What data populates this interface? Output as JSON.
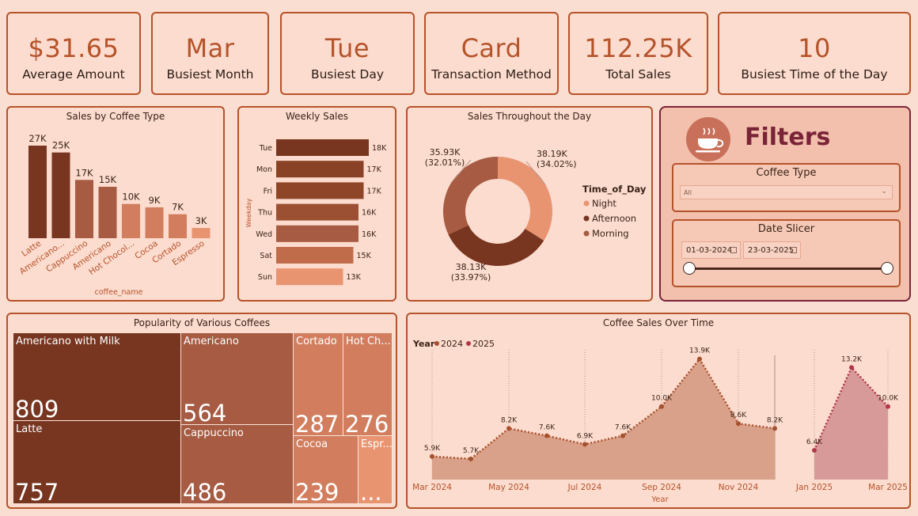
{
  "kpis": [
    {
      "value": "$31.65",
      "label": "Average Amount"
    },
    {
      "value": "Mar",
      "label": "Busiest Month"
    },
    {
      "value": "Tue",
      "label": "Busiest Day"
    },
    {
      "value": "Card",
      "label": "Transaction Method"
    },
    {
      "value": "112.25K",
      "label": "Total Sales"
    },
    {
      "value": "10",
      "label": "Busiest Time of the Day"
    }
  ],
  "coffee_type_chart": {
    "title": "Sales by Coffee Type",
    "xlabel": "coffee_name",
    "categories": [
      "Latte",
      "Americano...",
      "Cappuccino",
      "Americano",
      "Hot Chocol...",
      "Cocoa",
      "Cortado",
      "Espresso"
    ],
    "values": [
      27,
      25,
      17,
      15,
      10,
      9,
      7,
      3
    ],
    "labels": [
      "27K",
      "25K",
      "17K",
      "15K",
      "10K",
      "9K",
      "7K",
      "3K"
    ],
    "colors": [
      "#783620",
      "#783620",
      "#a65b42",
      "#a65b42",
      "#d27e5e",
      "#d27e5e",
      "#d27e5e",
      "#e99471"
    ]
  },
  "weekly_chart": {
    "title": "Weekly Sales",
    "ylabel": "Weekday",
    "categories": [
      "Tue",
      "Mon",
      "Fri",
      "Thu",
      "Wed",
      "Sat",
      "Sun"
    ],
    "values": [
      18,
      17,
      17,
      16,
      16,
      15,
      13
    ],
    "labels": [
      "18K",
      "17K",
      "17K",
      "16K",
      "16K",
      "15K",
      "13K"
    ],
    "colors": [
      "#783620",
      "#8a4227",
      "#8f4628",
      "#9c5033",
      "#a65b42",
      "#c06c4b",
      "#e99471"
    ]
  },
  "day_chart": {
    "title": "Sales Throughout the Day",
    "legend_title": "Time_of_Day",
    "slices": [
      {
        "name": "Night",
        "value": 38.19,
        "label": "38.19K",
        "pct": "(34.02%)",
        "color": "#e99471"
      },
      {
        "name": "Afternoon",
        "value": 38.13,
        "label": "38.13K",
        "pct": "(33.97%)",
        "color": "#783620"
      },
      {
        "name": "Morning",
        "value": 35.93,
        "label": "35.93K",
        "pct": "(32.01%)",
        "color": "#a65b42"
      }
    ]
  },
  "filters": {
    "title": "Filters",
    "coffee_type_title": "Coffee Type",
    "coffee_type_value": "All",
    "date_title": "Date Slicer",
    "date_start": "01-03-2024",
    "date_end": "23-03-2025"
  },
  "treemap": {
    "title": "Popularity of Various Coffees",
    "items": [
      {
        "name": "Americano with Milk",
        "value": "809",
        "color": "#783620"
      },
      {
        "name": "Latte",
        "value": "757",
        "color": "#783620"
      },
      {
        "name": "Americano",
        "value": "564",
        "color": "#a65b42"
      },
      {
        "name": "Cappuccino",
        "value": "486",
        "color": "#a65b42"
      },
      {
        "name": "Cortado",
        "value": "287",
        "color": "#d27e5e"
      },
      {
        "name": "Hot Ch...",
        "value": "276",
        "color": "#d27e5e"
      },
      {
        "name": "Cocoa",
        "value": "239",
        "color": "#d27e5e"
      },
      {
        "name": "Espr...",
        "value": "...",
        "color": "#e99471"
      }
    ]
  },
  "time_chart": {
    "title": "Coffee Sales Over Time",
    "legend_title": "Year",
    "xlabel": "Year",
    "series": [
      {
        "name": "2024",
        "color": "#a6502c",
        "points": [
          [
            "2024-03",
            5.9
          ],
          [
            "2024-04",
            5.7
          ],
          [
            "2024-05",
            8.2
          ],
          [
            "2024-06",
            7.6
          ],
          [
            "2024-07",
            6.9
          ],
          [
            "2024-08",
            7.6
          ],
          [
            "2024-09",
            10.0
          ],
          [
            "2024-10",
            13.9
          ],
          [
            "2024-11",
            8.6
          ],
          [
            "2024-12",
            8.2
          ]
        ],
        "labels": [
          "5.9K",
          "5.7K",
          "8.2K",
          "7.6K",
          "6.9K",
          "7.6K",
          "10.0K",
          "13.9K",
          "8.6K",
          "8.2K"
        ]
      },
      {
        "name": "2025",
        "color": "#b0374a",
        "points": [
          [
            "2025-01",
            6.4
          ],
          [
            "2025-02",
            13.2
          ],
          [
            "2025-03",
            10.0
          ]
        ],
        "labels": [
          "6.4K",
          "13.2K",
          "10.0K"
        ]
      }
    ],
    "x_ticks": [
      "Mar 2024",
      "May 2024",
      "Jul 2024",
      "Sep 2024",
      "Nov 2024",
      "Jan 2025",
      "Mar 2025"
    ]
  }
}
